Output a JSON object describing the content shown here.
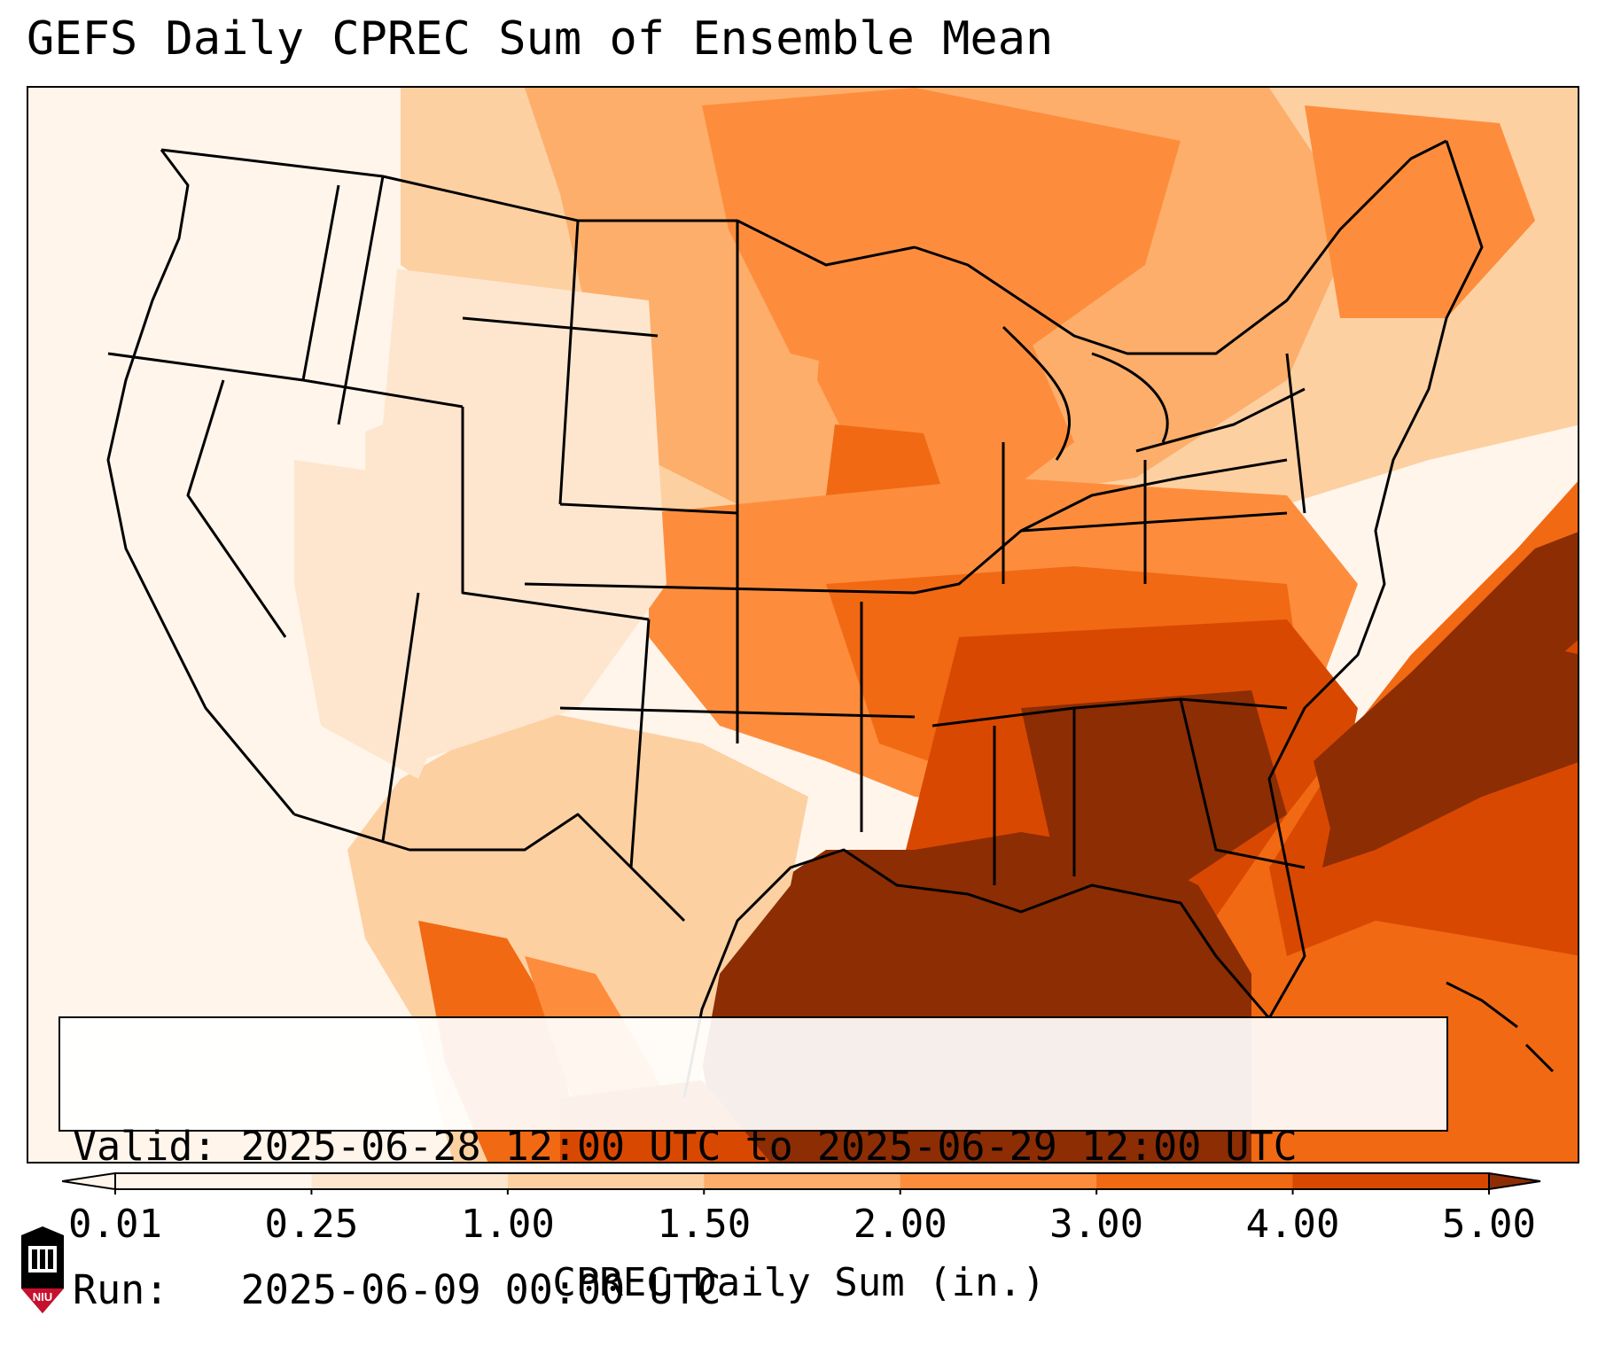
{
  "title": "GEFS Daily CPREC Sum of Ensemble Mean",
  "info": {
    "valid": "Valid: 2025-06-28 12:00 UTC to 2025-06-29 12:00 UTC",
    "run": "Run:   2025-06-09 00:00 UTC"
  },
  "colorbar": {
    "label": "CPREC Daily Sum (in.)",
    "ticks": [
      "0.01",
      "0.25",
      "1.00",
      "1.50",
      "2.00",
      "3.00",
      "4.00",
      "5.00"
    ],
    "colors": [
      "#fff5eb",
      "#fee6ce",
      "#fdd0a2",
      "#fdae6b",
      "#fd8d3c",
      "#f16913",
      "#d94801",
      "#8c2d04"
    ],
    "over_color": "#8c2d04",
    "under_color": "#fff5eb"
  },
  "logo": {
    "text": "NIU",
    "colors": {
      "shield": "#c8102e",
      "body": "#000000"
    }
  },
  "map": {
    "colors": {
      "ocean_light": "#fff5eb",
      "borders": "#000000"
    }
  }
}
